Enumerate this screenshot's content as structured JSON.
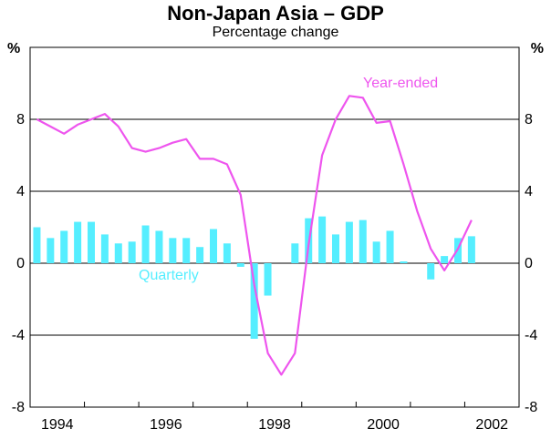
{
  "chart_data": {
    "type": "bar+line",
    "title": "Non-Japan Asia – GDP",
    "subtitle": "Percentage change",
    "ylabel_left": "%",
    "ylabel_right": "%",
    "ylim": [
      -8,
      12
    ],
    "yticks": [
      -8,
      -4,
      0,
      4,
      8
    ],
    "ytick_labels": [
      "-8",
      "-4",
      "0",
      "4",
      "8"
    ],
    "xlim": [
      1993.5,
      2002.5
    ],
    "xtick_labels": [
      "1994",
      "1996",
      "1998",
      "2000",
      "2002"
    ],
    "xtick_label_positions": [
      1994,
      1996,
      1998,
      2000,
      2002
    ],
    "grid": true,
    "series": [
      {
        "name": "Quarterly",
        "type": "bar",
        "color": "#55eeff",
        "x": [
          1993.5,
          1993.75,
          1994.0,
          1994.25,
          1994.5,
          1994.75,
          1995.0,
          1995.25,
          1995.5,
          1995.75,
          1996.0,
          1996.25,
          1996.5,
          1996.75,
          1997.0,
          1997.25,
          1997.5,
          1997.75,
          1998.0,
          1998.25,
          1998.5,
          1998.75,
          1999.0,
          1999.25,
          1999.5,
          1999.75,
          2000.0,
          2000.25,
          2000.5,
          2000.75,
          2001.0,
          2001.25,
          2001.5,
          2001.75
        ],
        "values": [
          2.0,
          1.4,
          1.8,
          2.3,
          2.3,
          1.6,
          1.1,
          1.2,
          2.1,
          1.8,
          1.4,
          1.4,
          0.9,
          1.9,
          1.1,
          -0.2,
          -4.2,
          -1.8,
          0.0,
          1.1,
          2.5,
          2.6,
          1.6,
          2.3,
          2.4,
          1.2,
          1.8,
          0.1,
          0.0,
          -0.9,
          0.4,
          1.4,
          1.5,
          0.0
        ]
      },
      {
        "name": "Year-ended",
        "type": "line",
        "color": "#ee55ee",
        "x": [
          1993.5,
          1993.75,
          1994.0,
          1994.25,
          1994.5,
          1994.75,
          1995.0,
          1995.25,
          1995.5,
          1995.75,
          1996.0,
          1996.25,
          1996.5,
          1996.75,
          1997.0,
          1997.25,
          1997.5,
          1997.75,
          1998.0,
          1998.25,
          1998.5,
          1998.75,
          1999.0,
          1999.25,
          1999.5,
          1999.75,
          2000.0,
          2000.25,
          2000.5,
          2000.75,
          2001.0,
          2001.25,
          2001.5
        ],
        "values": [
          8.0,
          7.6,
          7.2,
          7.7,
          8.0,
          8.3,
          7.6,
          6.4,
          6.2,
          6.4,
          6.7,
          6.9,
          5.8,
          5.8,
          5.5,
          3.8,
          -1.2,
          -5.0,
          -6.2,
          -5.0,
          1.0,
          6.0,
          8.0,
          9.3,
          9.2,
          7.8,
          7.9,
          5.5,
          2.9,
          0.8,
          -0.4,
          0.8,
          2.4
        ]
      }
    ],
    "annotations": [
      "Year-ended",
      "Quarterly"
    ]
  }
}
